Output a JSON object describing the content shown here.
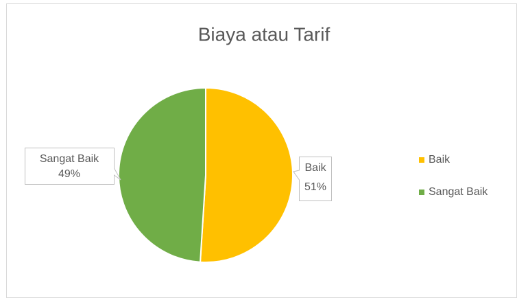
{
  "chart_data": {
    "type": "pie",
    "title": "Biaya atau Tarif",
    "categories": [
      "Baik",
      "Sangat Baik"
    ],
    "values": [
      51,
      49
    ],
    "value_labels": [
      "51%",
      "49%"
    ],
    "colors": [
      "#ffc000",
      "#70ad47"
    ],
    "legend": "right"
  }
}
